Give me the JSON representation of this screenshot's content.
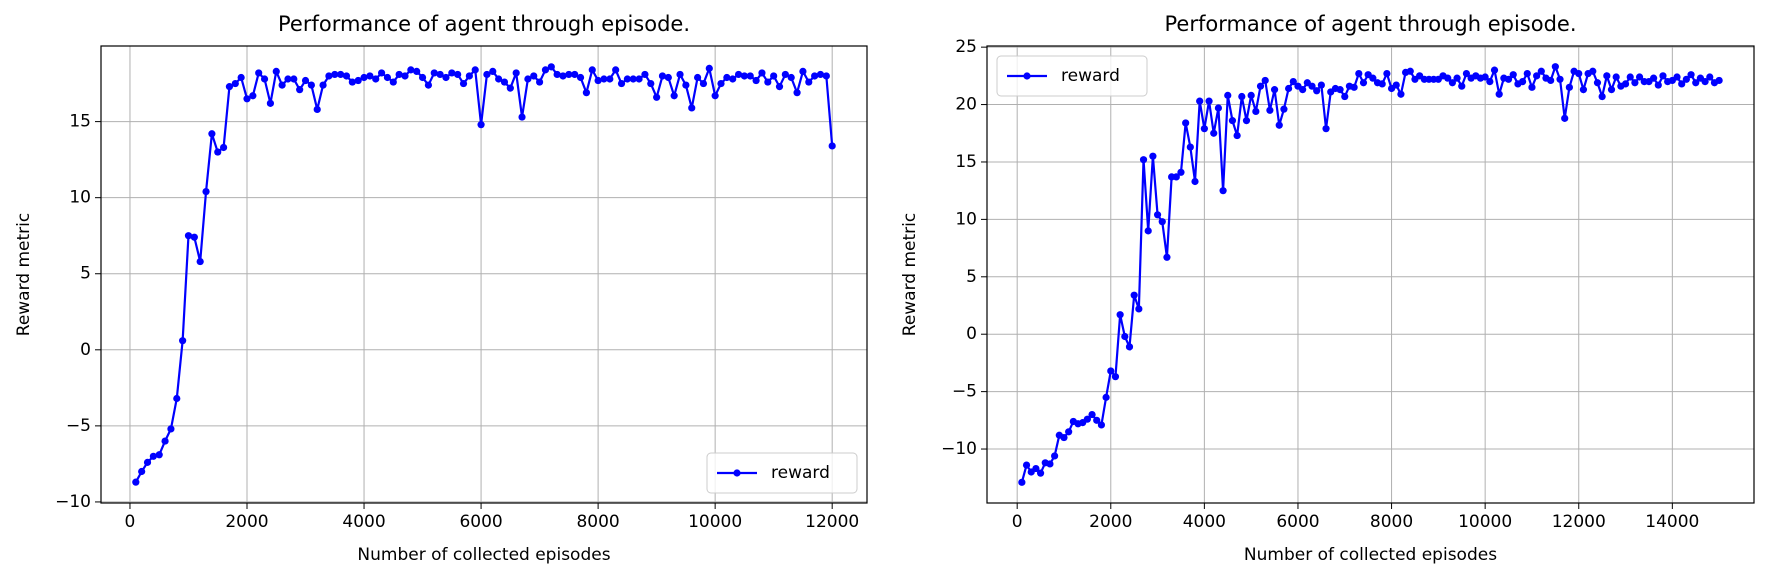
{
  "chart_data": [
    {
      "type": "line",
      "title": "Performance of agent through episode.",
      "x_label": "Number of collected episodes",
      "y_label": "Reward metric",
      "xlim": [
        -495,
        12595
      ],
      "ylim": [
        -10.07,
        19.97
      ],
      "xticks": [
        0,
        2000,
        4000,
        6000,
        8000,
        10000,
        12000
      ],
      "yticks": [
        {
          "value": -10,
          "label": "−10"
        },
        {
          "value": -5,
          "label": "−5"
        },
        0,
        5,
        10,
        15
      ],
      "grid": true,
      "legend": "lower right",
      "x": [
        100,
        200,
        300,
        400,
        500,
        600,
        700,
        800,
        900,
        1000,
        1100,
        1200,
        1300,
        1400,
        1500,
        1600,
        1700,
        1800,
        1900,
        2000,
        2100,
        2200,
        2300,
        2400,
        2500,
        2600,
        2700,
        2800,
        2900,
        3000,
        3100,
        3200,
        3300,
        3400,
        3500,
        3600,
        3700,
        3800,
        3900,
        4000,
        4100,
        4200,
        4300,
        4400,
        4500,
        4600,
        4700,
        4800,
        4900,
        5000,
        5100,
        5200,
        5300,
        5400,
        5500,
        5600,
        5700,
        5800,
        5900,
        6000,
        6100,
        6200,
        6300,
        6400,
        6500,
        6600,
        6700,
        6800,
        6900,
        7000,
        7100,
        7200,
        7300,
        7400,
        7500,
        7600,
        7700,
        7800,
        7900,
        8000,
        8100,
        8200,
        8300,
        8400,
        8500,
        8600,
        8700,
        8800,
        8900,
        9000,
        9100,
        9200,
        9300,
        9400,
        9500,
        9600,
        9700,
        9800,
        9900,
        10000,
        10100,
        10200,
        10300,
        10400,
        10500,
        10600,
        10700,
        10800,
        10900,
        11000,
        11100,
        11200,
        11300,
        11400,
        11500,
        11600,
        11700,
        11800,
        11900,
        12000
      ],
      "series": [
        {
          "name": "reward",
          "color": "#0000ff",
          "values": [
            -8.7,
            -8.0,
            -7.4,
            -7.0,
            -6.9,
            -6.0,
            -5.2,
            -3.2,
            0.6,
            7.5,
            7.4,
            5.8,
            10.4,
            14.2,
            13.0,
            13.3,
            17.3,
            17.5,
            17.9,
            16.5,
            16.7,
            18.2,
            17.8,
            16.2,
            18.3,
            17.4,
            17.8,
            17.8,
            17.1,
            17.7,
            17.4,
            15.8,
            17.4,
            18.0,
            18.1,
            18.1,
            18.0,
            17.6,
            17.7,
            17.9,
            18.0,
            17.8,
            18.2,
            17.9,
            17.6,
            18.1,
            18.0,
            18.4,
            18.3,
            17.9,
            17.4,
            18.2,
            18.1,
            17.9,
            18.2,
            18.1,
            17.5,
            18.0,
            18.4,
            14.8,
            18.1,
            18.3,
            17.8,
            17.6,
            17.2,
            18.2,
            15.3,
            17.8,
            18.0,
            17.6,
            18.4,
            18.6,
            18.1,
            18.0,
            18.1,
            18.1,
            17.9,
            16.9,
            18.4,
            17.7,
            17.8,
            17.8,
            18.4,
            17.5,
            17.8,
            17.8,
            17.8,
            18.1,
            17.5,
            16.6,
            18.0,
            17.9,
            16.7,
            18.1,
            17.4,
            15.9,
            17.9,
            17.5,
            18.5,
            16.7,
            17.5,
            17.9,
            17.8,
            18.1,
            18.0,
            18.0,
            17.7,
            18.2,
            17.6,
            18.0,
            17.3,
            18.1,
            17.9,
            16.9,
            18.3,
            17.6,
            18.0,
            18.1,
            18.0,
            13.4
          ]
        }
      ]
    },
    {
      "type": "line",
      "title": "Performance of agent through episode.",
      "x_label": "Number of collected episodes",
      "y_label": "Reward metric",
      "xlim": [
        -645,
        15745
      ],
      "ylim": [
        -14.7,
        25.1
      ],
      "xticks": [
        0,
        2000,
        4000,
        6000,
        8000,
        10000,
        12000,
        14000
      ],
      "yticks": [
        {
          "value": -10,
          "label": "−10"
        },
        {
          "value": -5,
          "label": "−5"
        },
        0,
        5,
        10,
        15,
        20,
        25
      ],
      "grid": true,
      "legend": "upper left",
      "x": [
        100,
        200,
        300,
        400,
        500,
        600,
        700,
        800,
        900,
        1000,
        1100,
        1200,
        1300,
        1400,
        1500,
        1600,
        1700,
        1800,
        1900,
        2000,
        2100,
        2200,
        2300,
        2400,
        2500,
        2600,
        2700,
        2800,
        2900,
        3000,
        3100,
        3200,
        3300,
        3400,
        3500,
        3600,
        3700,
        3800,
        3900,
        4000,
        4100,
        4200,
        4300,
        4400,
        4500,
        4600,
        4700,
        4800,
        4900,
        5000,
        5100,
        5200,
        5300,
        5400,
        5500,
        5600,
        5700,
        5800,
        5900,
        6000,
        6100,
        6200,
        6300,
        6400,
        6500,
        6600,
        6700,
        6800,
        6900,
        7000,
        7100,
        7200,
        7300,
        7400,
        7500,
        7600,
        7700,
        7800,
        7900,
        8000,
        8100,
        8200,
        8300,
        8400,
        8500,
        8600,
        8700,
        8800,
        8900,
        9000,
        9100,
        9200,
        9300,
        9400,
        9500,
        9600,
        9700,
        9800,
        9900,
        10000,
        10100,
        10200,
        10300,
        10400,
        10500,
        10600,
        10700,
        10800,
        10900,
        11000,
        11100,
        11200,
        11300,
        11400,
        11500,
        11600,
        11700,
        11800,
        11900,
        12000,
        12100,
        12200,
        12300,
        12400,
        12500,
        12600,
        12700,
        12800,
        12900,
        13000,
        13100,
        13200,
        13300,
        13400,
        13500,
        13600,
        13700,
        13800,
        13900,
        14000,
        14100,
        14200,
        14300,
        14400,
        14500,
        14600,
        14700,
        14800,
        14900,
        15000
      ],
      "series": [
        {
          "name": "reward",
          "color": "#0000ff",
          "values": [
            -12.9,
            -11.4,
            -12.0,
            -11.7,
            -12.1,
            -11.2,
            -11.3,
            -10.6,
            -8.8,
            -9.0,
            -8.5,
            -7.6,
            -7.8,
            -7.7,
            -7.4,
            -7.0,
            -7.5,
            -7.9,
            -5.5,
            -3.2,
            -3.7,
            1.7,
            -0.2,
            -1.1,
            3.4,
            2.2,
            15.2,
            9.0,
            15.5,
            10.4,
            9.8,
            6.7,
            13.7,
            13.7,
            14.1,
            18.4,
            16.3,
            13.3,
            20.3,
            17.9,
            20.3,
            17.5,
            19.7,
            12.5,
            20.8,
            18.6,
            17.3,
            20.7,
            18.6,
            20.8,
            19.4,
            21.6,
            22.1,
            19.5,
            21.3,
            18.2,
            19.6,
            21.4,
            22.0,
            21.6,
            21.3,
            21.9,
            21.6,
            21.2,
            21.7,
            17.9,
            21.1,
            21.4,
            21.3,
            20.7,
            21.6,
            21.5,
            22.7,
            21.9,
            22.6,
            22.3,
            21.9,
            21.8,
            22.7,
            21.4,
            21.7,
            20.9,
            22.8,
            22.9,
            22.2,
            22.5,
            22.2,
            22.2,
            22.2,
            22.2,
            22.5,
            22.3,
            21.9,
            22.3,
            21.6,
            22.7,
            22.3,
            22.5,
            22.3,
            22.4,
            22.0,
            23.0,
            20.9,
            22.3,
            22.2,
            22.6,
            21.8,
            22.0,
            22.7,
            21.5,
            22.5,
            22.9,
            22.3,
            22.1,
            23.3,
            22.2,
            18.8,
            21.5,
            22.9,
            22.7,
            21.3,
            22.7,
            22.9,
            21.9,
            20.7,
            22.5,
            21.3,
            22.4,
            21.6,
            21.8,
            22.4,
            21.9,
            22.4,
            22.0,
            22.0,
            22.3,
            21.7,
            22.5,
            22.0,
            22.1,
            22.4,
            21.8,
            22.2,
            22.6,
            21.9,
            22.3,
            22.0,
            22.4,
            21.9,
            22.1
          ]
        }
      ]
    }
  ]
}
